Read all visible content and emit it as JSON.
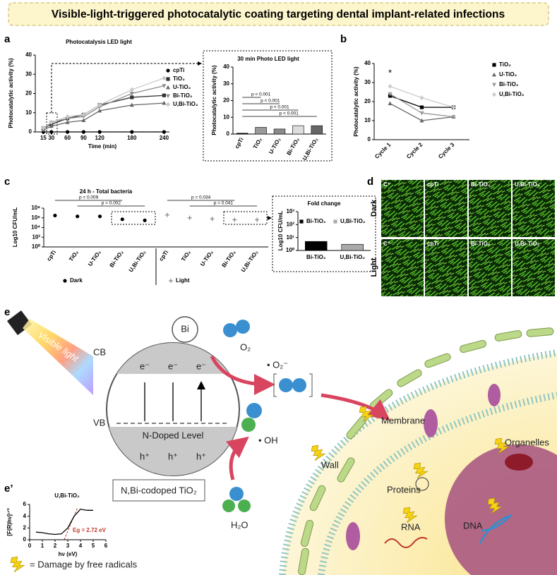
{
  "title": "Visible-light-triggered photocatalytic coating targeting dental implant-related infections",
  "panels": [
    "a",
    "b",
    "c",
    "d",
    "e",
    "e’"
  ],
  "chart_data": [
    {
      "type": "line",
      "title": "Photocatalysis LED light",
      "x_label": "Time (min)",
      "y_label": "Photocatalytic activity (%)",
      "x": [
        15,
        30,
        60,
        90,
        120,
        180,
        240
      ],
      "xlim": [
        0,
        250
      ],
      "xticks": [
        15,
        30,
        60,
        90,
        120,
        180,
        240
      ],
      "ylim": [
        0,
        40
      ],
      "yticks": [
        0,
        10,
        20,
        30,
        40
      ],
      "legend": true,
      "series": [
        {
          "name": "cpTi",
          "color": "#000000",
          "marker": "circle",
          "values": [
            0,
            0,
            0,
            0,
            0,
            0,
            0
          ]
        },
        {
          "name": "TiO₂",
          "color": "#333333",
          "marker": "square",
          "values": [
            2,
            4,
            7,
            9,
            14,
            18,
            19
          ]
        },
        {
          "name": "U-TiO₂",
          "color": "#666666",
          "marker": "triangle",
          "values": [
            1,
            3,
            5,
            6,
            11,
            14,
            15
          ]
        },
        {
          "name": "Bi-TiO₂",
          "color": "#8c8c8c",
          "marker": "triangle-down",
          "values": [
            2,
            5,
            7,
            8,
            13,
            20,
            24
          ]
        },
        {
          "name": "U,Bi-TiO₂",
          "color": "#c8c8c8",
          "marker": "diamond",
          "values": [
            2,
            5,
            8,
            9,
            14,
            22,
            28
          ]
        }
      ]
    },
    {
      "type": "bar",
      "title": "30 min Photo LED light",
      "y_label": "Photocatalytic activity (%)",
      "categories": [
        "cpTi",
        "TiO₂",
        "U-TiO₂",
        "Bi-TiO₂",
        "U,Bi-TiO₂"
      ],
      "values": [
        0.5,
        4,
        3,
        5,
        5
      ],
      "colors": [
        "#000000",
        "#9a9a9a",
        "#8a8a8a",
        "#dddddd",
        "#666666"
      ],
      "ylim": [
        0,
        40
      ],
      "yticks": [
        0,
        10,
        20,
        30,
        40
      ],
      "annotations": [
        "p < 0.001",
        "p < 0.001",
        "p < 0.001",
        "p < 0.001"
      ]
    },
    {
      "type": "line",
      "y_label": "Photocatalytic activity (%)",
      "categories": [
        "Cycle 1",
        "Cycle 2",
        "Cycle 3"
      ],
      "ylim": [
        0,
        40
      ],
      "yticks": [
        0,
        10,
        20,
        30,
        40
      ],
      "legend": true,
      "annotations": [
        "*"
      ],
      "series": [
        {
          "name": "TiO₂",
          "color": "#000000",
          "marker": "square",
          "values": [
            23,
            17,
            17
          ]
        },
        {
          "name": "U-TiO₂",
          "color": "#666666",
          "marker": "triangle",
          "values": [
            19,
            10,
            12
          ]
        },
        {
          "name": "Bi-TiO₂",
          "color": "#999999",
          "marker": "triangle-down",
          "values": [
            24,
            14,
            12
          ]
        },
        {
          "name": "U,Bi-TiO₂",
          "color": "#cccccc",
          "marker": "diamond",
          "values": [
            28,
            22,
            17
          ]
        }
      ]
    },
    {
      "type": "dot",
      "title": "24 h - Total bacteria",
      "y_label": "Log10 CFU/mL",
      "log_scale": true,
      "categories": [
        "cpTi",
        "TiO₂",
        "U-TiO₂",
        "Bi-TiO₂",
        "U,Bi-TiO₂",
        "cpTi",
        "TiO₂",
        "U-TiO₂",
        "Bi-TiO₂",
        "U,Bi-TiO₂"
      ],
      "ylim": [
        1,
        100000000
      ],
      "yticks": [
        {
          "value": 1,
          "label": "10⁰"
        },
        {
          "value": 100,
          "label": "10²"
        },
        {
          "value": 10000,
          "label": "10⁴"
        },
        {
          "value": 1000000,
          "label": "10⁶"
        },
        {
          "value": 100000000,
          "label": "10⁸"
        }
      ],
      "legend": true,
      "series": [
        {
          "name": "Dark",
          "color": "#000000",
          "marker": "circle",
          "values": [
            3000000,
            2000000,
            2000000,
            500000,
            300000,
            null,
            null,
            null,
            null,
            null
          ]
        },
        {
          "name": "Light",
          "color": "#888888",
          "marker": "plus",
          "values": [
            null,
            null,
            null,
            null,
            null,
            4000000,
            1000000,
            600000,
            400000,
            400000
          ]
        }
      ],
      "annotations": [
        "p = 0.009",
        "p = 0.002",
        "p = 0.034",
        "p = 0.041"
      ]
    },
    {
      "type": "bar",
      "title": "Fold change",
      "y_label": "Log10 CFU/mL",
      "log_scale": true,
      "categories": [
        "Bi-TiO₂",
        "U,Bi-TiO₂"
      ],
      "values": [
        5,
        3
      ],
      "colors": [
        "#000000",
        "#aaaaaa"
      ],
      "legend": true,
      "ylim": [
        1,
        1000
      ],
      "yticks": [
        {
          "value": 1,
          "label": "10⁰"
        },
        {
          "value": 10,
          "label": "10¹"
        },
        {
          "value": 100,
          "label": "10²"
        },
        {
          "value": 1000,
          "label": "10³"
        }
      ]
    },
    {
      "type": "line",
      "title": "U,Bi-TiO₂",
      "x_label": "hν (eV)",
      "y_label": "[F(R)hν]¹ᐟ²",
      "x": [
        0.5,
        1,
        1.5,
        2,
        2.5,
        3,
        3.5,
        4,
        4.5,
        5
      ],
      "values": [
        1.3,
        1.2,
        1.0,
        0.9,
        1.0,
        2.0,
        4.0,
        5.2,
        5.0,
        5.0
      ],
      "color": "#000000",
      "xlim": [
        0,
        6
      ],
      "xticks": [
        0,
        1,
        2,
        3,
        4,
        5,
        6
      ],
      "ylim": [
        0,
        6
      ],
      "yticks": [
        0,
        2,
        4,
        6
      ],
      "annotations": [
        "Eg = 2.72 eV"
      ]
    }
  ],
  "micrographs": {
    "rows": [
      "Dark",
      "Light"
    ],
    "columns": [
      "C⁺",
      "cpTi",
      "Bi-TiO₂",
      "U,Bi-TiO₂"
    ]
  },
  "scheme": {
    "bi": "Bi",
    "cb": "CB",
    "vb": "VB",
    "electron": "e⁻",
    "hole": "h⁺",
    "n_level": "N-Doped Level",
    "visible_light": "Visible light",
    "o2": "O₂",
    "superoxide": "• O₂⁻",
    "hydroxyl": "• OH",
    "water": "H₂O",
    "material": "N,Bi-codoped TiO₂",
    "membrane": "Membrane",
    "wall": "Wall",
    "organelles": "Organelles",
    "proteins": "Proteins",
    "rna": "RNA",
    "dna": "DNA",
    "legend": "= Damage by free radicals"
  }
}
